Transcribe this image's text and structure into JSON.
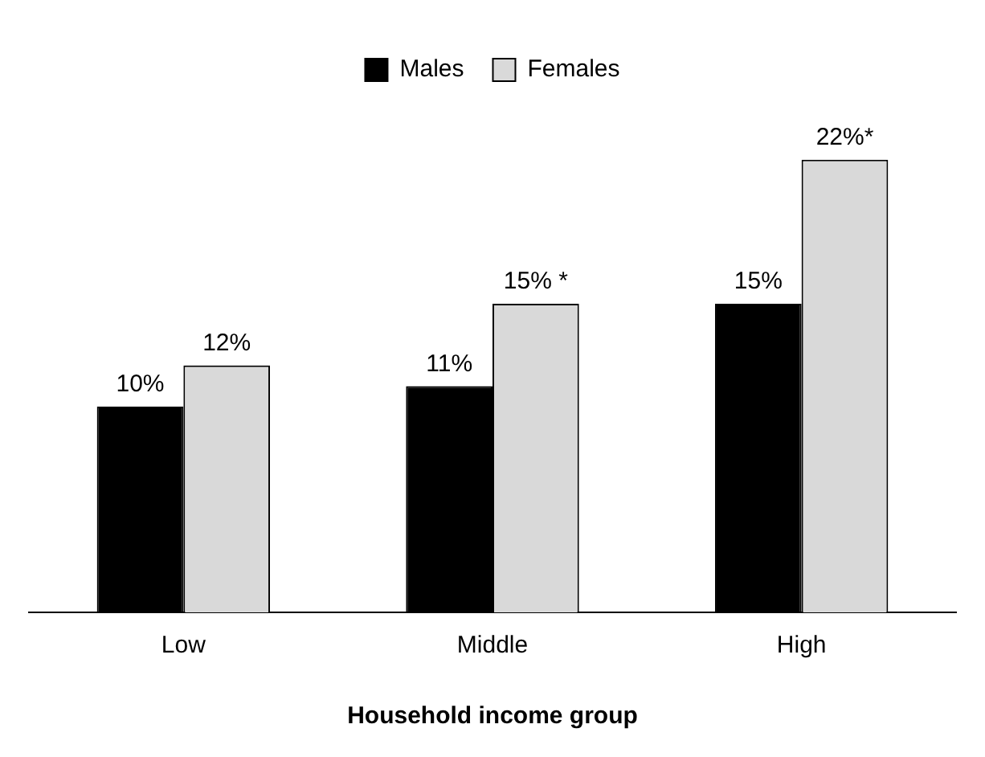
{
  "chart_data": {
    "type": "bar",
    "xlabel": "Household income group",
    "categories": [
      "Low",
      "Middle",
      "High"
    ],
    "series": [
      {
        "name": "Males",
        "color": "#000000",
        "values": [
          10,
          11,
          15
        ],
        "value_labels": [
          "10%",
          "11%",
          "15%"
        ]
      },
      {
        "name": "Females",
        "color": "#d9d9d9",
        "values": [
          12,
          15,
          22
        ],
        "value_labels": [
          "12%",
          "15% *",
          "22%*"
        ]
      }
    ],
    "legend": "top",
    "grid": false
  }
}
